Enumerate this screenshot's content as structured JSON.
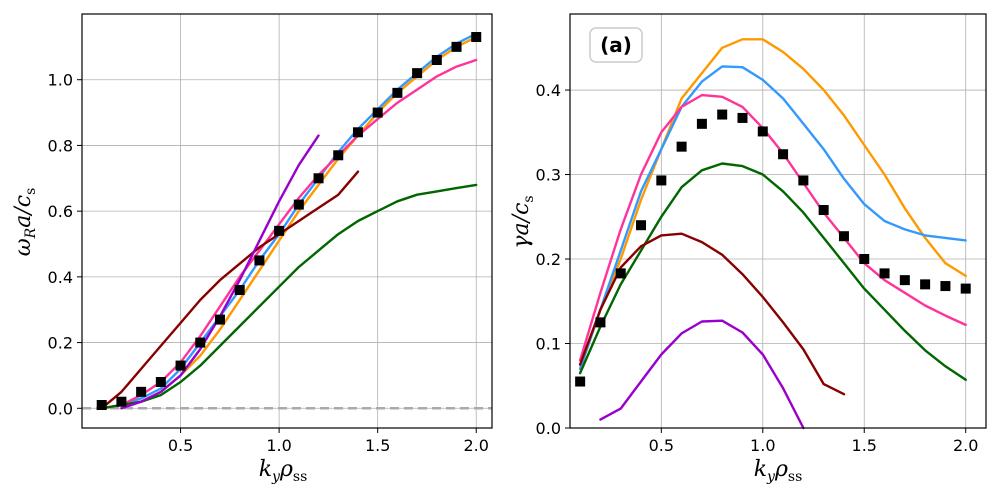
{
  "chart_data": [
    {
      "type": "line",
      "panel": "left",
      "title": "",
      "xlabel": "k_y ρ_ss",
      "ylabel": "ω_R a / c_s",
      "xlim": [
        0.0,
        2.08
      ],
      "ylim": [
        -0.06,
        1.2
      ],
      "xticks": [
        0.5,
        1.0,
        1.5,
        2.0
      ],
      "yticks": [
        0.0,
        0.2,
        0.4,
        0.6,
        0.8,
        1.0
      ],
      "xtick_labels": [
        "0.5",
        "1.0",
        "1.5",
        "2.0"
      ],
      "ytick_labels": [
        "0.0",
        "0.2",
        "0.4",
        "0.6",
        "0.8",
        "1.0"
      ],
      "grid": true,
      "reference_line": {
        "y": 0.0,
        "color": "#aaaaaa",
        "style": "dashed"
      },
      "series": [
        {
          "name": "blue",
          "color": "#3399ff",
          "x": [
            0.1,
            0.2,
            0.3,
            0.4,
            0.5,
            0.6,
            0.7,
            0.8,
            0.9,
            1.0,
            1.1,
            1.2,
            1.3,
            1.4,
            1.5,
            1.6,
            1.7,
            1.8,
            1.9,
            2.0
          ],
          "y": [
            0.0,
            0.01,
            0.03,
            0.06,
            0.12,
            0.2,
            0.28,
            0.36,
            0.45,
            0.53,
            0.62,
            0.7,
            0.78,
            0.85,
            0.91,
            0.97,
            1.02,
            1.07,
            1.11,
            1.14
          ]
        },
        {
          "name": "orange",
          "color": "#ff9900",
          "x": [
            0.1,
            0.2,
            0.3,
            0.4,
            0.5,
            0.6,
            0.7,
            0.8,
            0.9,
            1.0,
            1.1,
            1.2,
            1.3,
            1.4,
            1.5,
            1.6,
            1.7,
            1.8,
            1.9,
            2.0
          ],
          "y": [
            0.0,
            0.01,
            0.02,
            0.05,
            0.1,
            0.16,
            0.24,
            0.33,
            0.42,
            0.51,
            0.6,
            0.68,
            0.76,
            0.83,
            0.9,
            0.96,
            1.01,
            1.06,
            1.1,
            1.13
          ]
        },
        {
          "name": "magenta",
          "color": "#ff3399",
          "x": [
            0.1,
            0.2,
            0.3,
            0.4,
            0.5,
            0.6,
            0.7,
            0.8,
            0.9,
            1.0,
            1.1,
            1.2,
            1.3,
            1.4,
            1.5,
            1.6,
            1.7,
            1.8,
            1.9,
            2.0
          ],
          "y": [
            0.0,
            0.01,
            0.04,
            0.08,
            0.14,
            0.22,
            0.31,
            0.4,
            0.48,
            0.56,
            0.64,
            0.71,
            0.77,
            0.83,
            0.88,
            0.93,
            0.97,
            1.01,
            1.04,
            1.06
          ]
        },
        {
          "name": "green",
          "color": "#006600",
          "x": [
            0.1,
            0.2,
            0.3,
            0.4,
            0.5,
            0.6,
            0.7,
            0.8,
            0.9,
            1.0,
            1.1,
            1.2,
            1.3,
            1.4,
            1.5,
            1.6,
            1.7,
            1.8,
            1.9,
            2.0
          ],
          "y": [
            0.0,
            0.01,
            0.02,
            0.04,
            0.08,
            0.13,
            0.19,
            0.25,
            0.31,
            0.37,
            0.43,
            0.48,
            0.53,
            0.57,
            0.6,
            0.63,
            0.65,
            0.66,
            0.67,
            0.68
          ]
        },
        {
          "name": "darkred",
          "color": "#880000",
          "x": [
            0.1,
            0.2,
            0.3,
            0.4,
            0.5,
            0.6,
            0.7,
            0.8,
            0.9,
            1.0,
            1.1,
            1.2,
            1.3,
            1.4
          ],
          "y": [
            0.0,
            0.05,
            0.12,
            0.19,
            0.26,
            0.33,
            0.39,
            0.44,
            0.49,
            0.53,
            0.57,
            0.61,
            0.65,
            0.72
          ]
        },
        {
          "name": "purple",
          "color": "#9900cc",
          "x": [
            0.2,
            0.3,
            0.4,
            0.5,
            0.6,
            0.7,
            0.8,
            0.9,
            1.0,
            1.1,
            1.2
          ],
          "y": [
            0.0,
            0.02,
            0.05,
            0.1,
            0.18,
            0.28,
            0.39,
            0.51,
            0.63,
            0.74,
            0.83
          ]
        }
      ],
      "markers": {
        "name": "data",
        "color": "#000000",
        "shape": "square",
        "x": [
          0.1,
          0.2,
          0.3,
          0.4,
          0.5,
          0.6,
          0.7,
          0.8,
          0.9,
          1.0,
          1.1,
          1.2,
          1.3,
          1.4,
          1.5,
          1.6,
          1.7,
          1.8,
          1.9,
          2.0
        ],
        "y": [
          0.01,
          0.02,
          0.05,
          0.08,
          0.13,
          0.2,
          0.27,
          0.36,
          0.45,
          0.54,
          0.62,
          0.7,
          0.77,
          0.84,
          0.9,
          0.96,
          1.02,
          1.06,
          1.1,
          1.13
        ]
      }
    },
    {
      "type": "line",
      "panel": "right",
      "title": "",
      "annotation": "(a)",
      "xlabel": "k_y ρ_ss",
      "ylabel": "γ a / c_s",
      "xlim": [
        0.05,
        2.1
      ],
      "ylim": [
        0.0,
        0.49
      ],
      "xticks": [
        0.5,
        1.0,
        1.5,
        2.0
      ],
      "yticks": [
        0.0,
        0.1,
        0.2,
        0.3,
        0.4
      ],
      "xtick_labels": [
        "0.5",
        "1.0",
        "1.5",
        "2.0"
      ],
      "ytick_labels": [
        "0.0",
        "0.1",
        "0.2",
        "0.3",
        "0.4"
      ],
      "grid": true,
      "series": [
        {
          "name": "orange",
          "color": "#ff9900",
          "x": [
            0.1,
            0.2,
            0.3,
            0.4,
            0.5,
            0.6,
            0.7,
            0.8,
            0.9,
            1.0,
            1.1,
            1.2,
            1.3,
            1.4,
            1.5,
            1.6,
            1.7,
            1.8,
            1.9,
            2.0
          ],
          "y": [
            0.07,
            0.14,
            0.2,
            0.27,
            0.33,
            0.39,
            0.42,
            0.45,
            0.46,
            0.46,
            0.445,
            0.425,
            0.4,
            0.37,
            0.335,
            0.3,
            0.26,
            0.225,
            0.195,
            0.18
          ]
        },
        {
          "name": "blue",
          "color": "#3399ff",
          "x": [
            0.1,
            0.2,
            0.3,
            0.4,
            0.5,
            0.6,
            0.7,
            0.8,
            0.9,
            1.0,
            1.1,
            1.2,
            1.3,
            1.4,
            1.5,
            1.6,
            1.7,
            1.8,
            1.9,
            2.0
          ],
          "y": [
            0.07,
            0.14,
            0.21,
            0.28,
            0.33,
            0.38,
            0.41,
            0.428,
            0.427,
            0.412,
            0.39,
            0.36,
            0.33,
            0.295,
            0.265,
            0.245,
            0.235,
            0.228,
            0.225,
            0.222
          ]
        },
        {
          "name": "magenta",
          "color": "#ff3399",
          "x": [
            0.1,
            0.2,
            0.3,
            0.4,
            0.5,
            0.6,
            0.7,
            0.8,
            0.9,
            1.0,
            1.1,
            1.2,
            1.3,
            1.4,
            1.5,
            1.6,
            1.7,
            1.8,
            1.9,
            2.0
          ],
          "y": [
            0.08,
            0.16,
            0.235,
            0.3,
            0.35,
            0.38,
            0.394,
            0.392,
            0.38,
            0.355,
            0.325,
            0.29,
            0.255,
            0.225,
            0.195,
            0.175,
            0.16,
            0.145,
            0.133,
            0.122
          ]
        },
        {
          "name": "green",
          "color": "#006600",
          "x": [
            0.1,
            0.2,
            0.3,
            0.4,
            0.5,
            0.6,
            0.7,
            0.8,
            0.9,
            1.0,
            1.1,
            1.2,
            1.3,
            1.4,
            1.5,
            1.6,
            1.7,
            1.8,
            1.9,
            2.0
          ],
          "y": [
            0.065,
            0.12,
            0.17,
            0.21,
            0.25,
            0.285,
            0.305,
            0.313,
            0.31,
            0.3,
            0.28,
            0.255,
            0.225,
            0.195,
            0.165,
            0.14,
            0.115,
            0.092,
            0.073,
            0.057
          ]
        },
        {
          "name": "darkred",
          "color": "#880000",
          "x": [
            0.1,
            0.2,
            0.3,
            0.4,
            0.5,
            0.6,
            0.7,
            0.8,
            0.9,
            1.0,
            1.1,
            1.2,
            1.3,
            1.4
          ],
          "y": [
            0.075,
            0.14,
            0.19,
            0.215,
            0.228,
            0.23,
            0.22,
            0.205,
            0.182,
            0.155,
            0.125,
            0.093,
            0.052,
            0.04
          ]
        },
        {
          "name": "purple",
          "color": "#9900cc",
          "x": [
            0.2,
            0.3,
            0.4,
            0.5,
            0.6,
            0.7,
            0.8,
            0.9,
            1.0,
            1.1,
            1.2
          ],
          "y": [
            0.01,
            0.023,
            0.055,
            0.087,
            0.112,
            0.126,
            0.127,
            0.113,
            0.087,
            0.047,
            0.0
          ]
        }
      ],
      "markers": {
        "name": "data",
        "color": "#000000",
        "shape": "square",
        "x": [
          0.1,
          0.2,
          0.3,
          0.4,
          0.5,
          0.6,
          0.7,
          0.8,
          0.9,
          1.0,
          1.1,
          1.2,
          1.3,
          1.4,
          1.5,
          1.6,
          1.7,
          1.8,
          1.9,
          2.0
        ],
        "y": [
          0.055,
          0.125,
          0.183,
          0.24,
          0.293,
          0.333,
          0.36,
          0.371,
          0.367,
          0.351,
          0.324,
          0.293,
          0.258,
          0.227,
          0.2,
          0.183,
          0.175,
          0.17,
          0.168,
          0.165
        ]
      }
    }
  ]
}
